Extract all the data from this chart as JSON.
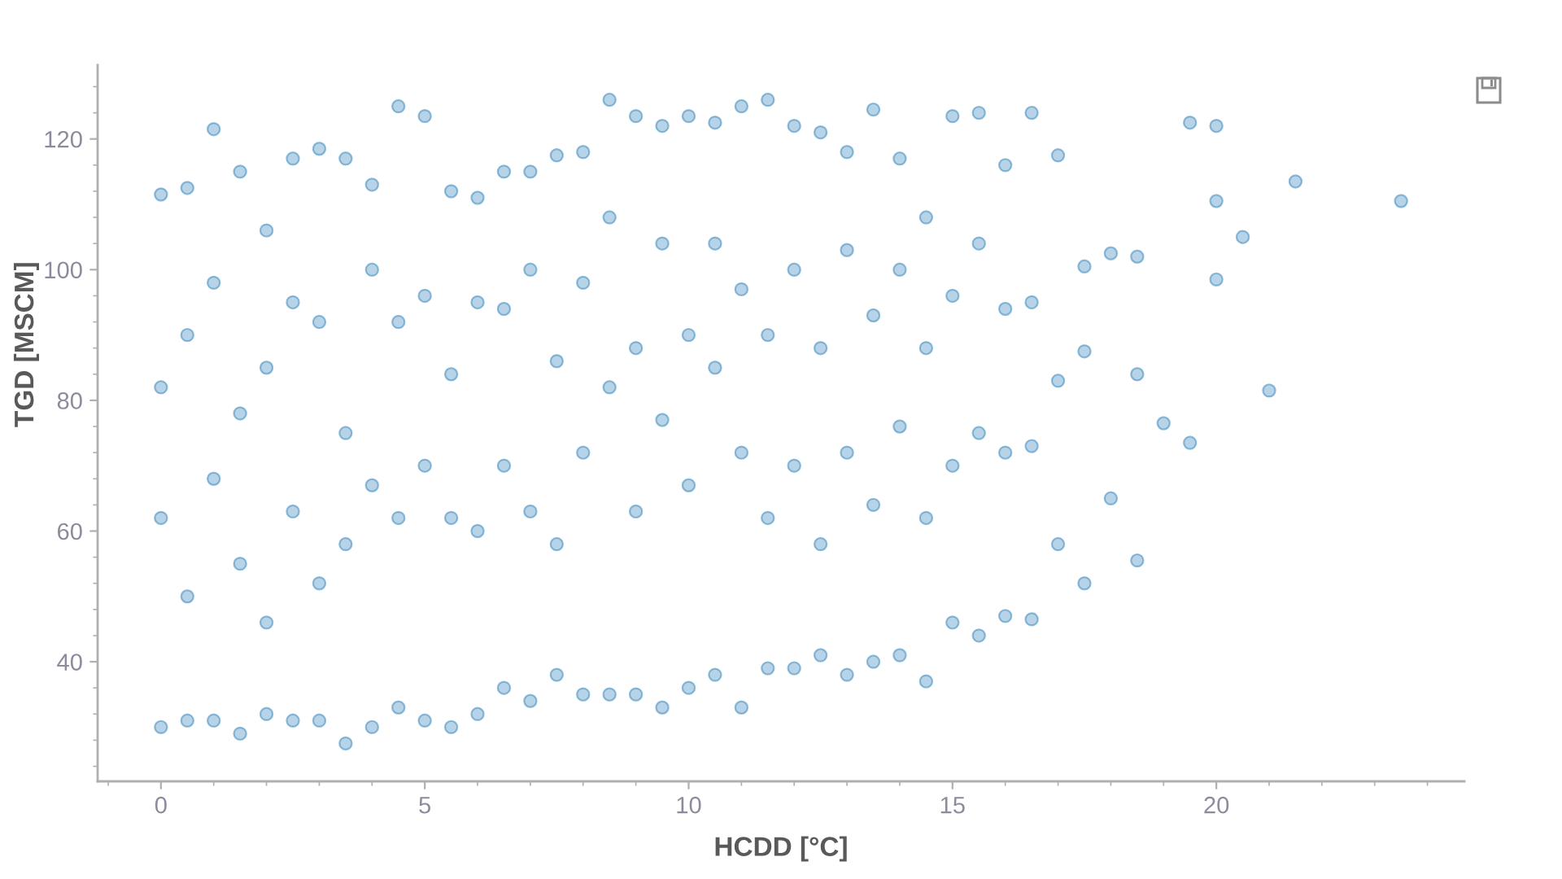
{
  "chart_data": {
    "type": "scatter",
    "xlabel": "HCDD [°C]",
    "ylabel": "TGD [MSCM]",
    "color": "#1f77b4",
    "marker": "circle",
    "xlim": [
      -1.2,
      24.7
    ],
    "ylim": [
      21.7,
      131.3
    ],
    "xticks": [
      {
        "value": -1,
        "label": null
      },
      0,
      {
        "value": 1,
        "label": null
      },
      {
        "value": 2,
        "label": null
      },
      {
        "value": 3,
        "label": null
      },
      {
        "value": 4,
        "label": null
      },
      5,
      {
        "value": 6,
        "label": null
      },
      {
        "value": 7,
        "label": null
      },
      {
        "value": 8,
        "label": null
      },
      {
        "value": 9,
        "label": null
      },
      10,
      {
        "value": 11,
        "label": null
      },
      {
        "value": 12,
        "label": null
      },
      {
        "value": 13,
        "label": null
      },
      {
        "value": 14,
        "label": null
      },
      15,
      {
        "value": 16,
        "label": null
      },
      {
        "value": 17,
        "label": null
      },
      {
        "value": 18,
        "label": null
      },
      {
        "value": 19,
        "label": null
      },
      20,
      {
        "value": 21,
        "label": null
      },
      {
        "value": 22,
        "label": null
      },
      {
        "value": 23,
        "label": null
      },
      {
        "value": 24,
        "label": null
      }
    ],
    "yticks": [
      {
        "value": 24,
        "label": null
      },
      {
        "value": 28,
        "label": null
      },
      {
        "value": 32,
        "label": null
      },
      {
        "value": 36,
        "label": null
      },
      40,
      {
        "value": 44,
        "label": null
      },
      {
        "value": 48,
        "label": null
      },
      {
        "value": 52,
        "label": null
      },
      {
        "value": 56,
        "label": null
      },
      60,
      {
        "value": 64,
        "label": null
      },
      {
        "value": 68,
        "label": null
      },
      {
        "value": 72,
        "label": null
      },
      {
        "value": 76,
        "label": null
      },
      80,
      {
        "value": 84,
        "label": null
      },
      {
        "value": 88,
        "label": null
      },
      {
        "value": 92,
        "label": null
      },
      {
        "value": 96,
        "label": null
      },
      100,
      {
        "value": 104,
        "label": null
      },
      {
        "value": 108,
        "label": null
      },
      {
        "value": 112,
        "label": null
      },
      {
        "value": 116,
        "label": null
      },
      120,
      {
        "value": 124,
        "label": null
      },
      {
        "value": 128,
        "label": null
      }
    ],
    "x": [
      0,
      0,
      0,
      0,
      0.5,
      0.5,
      0.5,
      0.5,
      1,
      1,
      1,
      1,
      1.5,
      1.5,
      1.5,
      1.5,
      2,
      2,
      2,
      2,
      2.5,
      2.5,
      2.5,
      2.5,
      3,
      3,
      3,
      3,
      3.5,
      3.5,
      3.5,
      3.5,
      4,
      4,
      4,
      4,
      4.5,
      4.5,
      4.5,
      4.5,
      5,
      5,
      5,
      5,
      5.5,
      5.5,
      5.5,
      5.5,
      6,
      6,
      6,
      6,
      6.5,
      6.5,
      6.5,
      6.5,
      7,
      7,
      7,
      7,
      7.5,
      7.5,
      7.5,
      7.5,
      8,
      8,
      8,
      8,
      8.5,
      8.5,
      8.5,
      8.5,
      9,
      9,
      9,
      9,
      9.5,
      9.5,
      9.5,
      9.5,
      10,
      10,
      10,
      10,
      10.5,
      10.5,
      10.5,
      10.5,
      11,
      11,
      11,
      11,
      11.5,
      11.5,
      11.5,
      11.5,
      12,
      12,
      12,
      12,
      12.5,
      12.5,
      12.5,
      12.5,
      13,
      13,
      13,
      13,
      13.5,
      13.5,
      13.5,
      13.5,
      14,
      14,
      14,
      14,
      14.5,
      14.5,
      14.5,
      14.5,
      15,
      15,
      15,
      15,
      15.5,
      15.5,
      15.5,
      15.5,
      16,
      16,
      16,
      16,
      16.5,
      16.5,
      16.5,
      16.5,
      17,
      17,
      17,
      17.5,
      17.5,
      17.5,
      18,
      18,
      18.5,
      18.5,
      18.5,
      19,
      19.5,
      19.5,
      20,
      20,
      20,
      20.5,
      21,
      21.5,
      23.5
    ],
    "values": [
      111.5,
      82,
      62,
      30,
      112.5,
      90,
      50,
      31,
      121.5,
      98,
      68,
      31,
      115,
      78,
      55,
      29,
      106,
      85,
      46,
      32,
      117,
      95,
      63,
      31,
      118.5,
      92,
      52,
      31,
      117,
      75,
      58,
      27.5,
      113,
      100,
      67,
      30,
      125,
      92,
      62,
      33,
      123.5,
      96,
      70,
      31,
      112,
      84,
      62,
      30,
      111,
      95,
      60,
      32,
      115,
      94,
      70,
      36,
      115,
      100,
      63,
      34,
      117.5,
      86,
      58,
      38,
      118,
      98,
      72,
      35,
      126,
      108,
      82,
      35,
      123.5,
      88,
      63,
      35,
      122,
      104,
      77,
      33,
      123.5,
      90,
      67,
      36,
      122.5,
      104,
      85,
      38,
      125,
      97,
      72,
      33,
      126,
      90,
      62,
      39,
      122,
      100,
      70,
      39,
      121,
      88,
      58,
      41,
      118,
      103,
      72,
      38,
      124.5,
      93,
      64,
      40,
      117,
      100,
      76,
      41,
      108,
      88,
      62,
      37,
      123.5,
      96,
      70,
      46,
      124,
      104,
      75,
      44,
      116,
      94,
      72,
      47,
      124,
      95,
      73,
      46.5,
      117.5,
      83,
      58,
      100.5,
      87.5,
      52,
      102.5,
      65,
      102,
      84,
      55.5,
      76.5,
      122.5,
      73.5,
      122,
      110.5,
      98.5,
      105,
      81.5,
      113.5,
      110.5
    ]
  }
}
